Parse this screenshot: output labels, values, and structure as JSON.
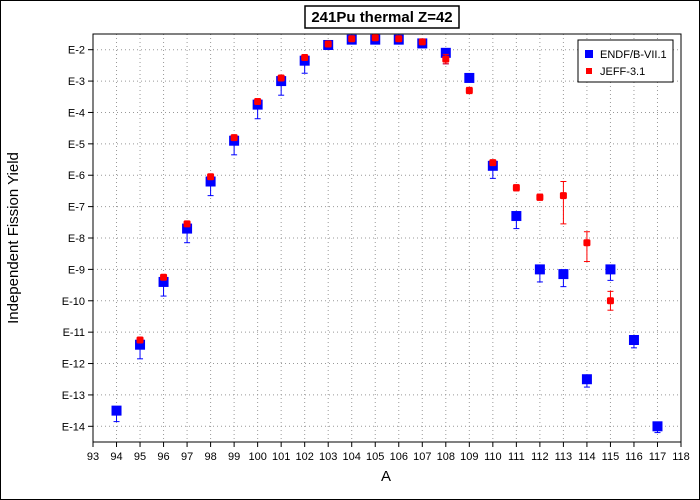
{
  "chart_data": {
    "type": "scatter",
    "title": "241Pu thermal Z=42",
    "xlabel": "A",
    "ylabel": "Independent Fission Yield",
    "xlim": [
      93,
      118
    ],
    "ylim": [
      -14.5,
      -1.5
    ],
    "x_ticks": [
      93,
      94,
      95,
      96,
      97,
      98,
      99,
      100,
      101,
      102,
      103,
      104,
      105,
      106,
      107,
      108,
      109,
      110,
      111,
      112,
      113,
      114,
      115,
      116,
      117,
      118
    ],
    "y_ticks": [
      -2,
      -3,
      -4,
      -5,
      -6,
      -7,
      -8,
      -9,
      -10,
      -11,
      -12,
      -13,
      -14
    ],
    "y_tick_labels": [
      "E-2",
      "E-3",
      "E-4",
      "E-5",
      "E-6",
      "E-7",
      "E-8",
      "E-9",
      "E-10",
      "E-11",
      "E-12",
      "E-13",
      "E-14"
    ],
    "y_scale": "log",
    "grid": true,
    "legend_position": "top-right",
    "series": [
      {
        "name": "ENDF/B-VII.1",
        "color": "#0000ff",
        "marker": "square",
        "points": [
          {
            "x": 94,
            "y": -13.5,
            "err_lo": 0.35,
            "err_hi": 0
          },
          {
            "x": 95,
            "y": -11.4,
            "err_lo": 0.45,
            "err_hi": 0
          },
          {
            "x": 96,
            "y": -9.4,
            "err_lo": 0.45,
            "err_hi": 0
          },
          {
            "x": 97,
            "y": -7.7,
            "err_lo": 0.45,
            "err_hi": 0
          },
          {
            "x": 98,
            "y": -6.2,
            "err_lo": 0.45,
            "err_hi": 0
          },
          {
            "x": 99,
            "y": -4.9,
            "err_lo": 0.45,
            "err_hi": 0
          },
          {
            "x": 100,
            "y": -3.75,
            "err_lo": 0.45,
            "err_hi": 0
          },
          {
            "x": 101,
            "y": -3.0,
            "err_lo": 0.45,
            "err_hi": 0
          },
          {
            "x": 102,
            "y": -2.35,
            "err_lo": 0.4,
            "err_hi": 0
          },
          {
            "x": 103,
            "y": -1.85,
            "err_lo": 0.1,
            "err_hi": 0
          },
          {
            "x": 104,
            "y": -1.68,
            "err_lo": 0.05,
            "err_hi": 0
          },
          {
            "x": 105,
            "y": -1.68,
            "err_lo": 0.05,
            "err_hi": 0
          },
          {
            "x": 106,
            "y": -1.68,
            "err_lo": 0.05,
            "err_hi": 0
          },
          {
            "x": 107,
            "y": -1.8,
            "err_lo": 0.1,
            "err_hi": 0
          },
          {
            "x": 108,
            "y": -2.1,
            "err_lo": 0.35,
            "err_hi": 0
          },
          {
            "x": 109,
            "y": -2.9,
            "err_lo": 0.05,
            "err_hi": 0.05
          },
          {
            "x": 110,
            "y": -5.7,
            "err_lo": 0.4,
            "err_hi": 0.1
          },
          {
            "x": 111,
            "y": -7.3,
            "err_lo": 0.4,
            "err_hi": 0
          },
          {
            "x": 112,
            "y": -9.0,
            "err_lo": 0.4,
            "err_hi": 0
          },
          {
            "x": 113,
            "y": -9.15,
            "err_lo": 0.4,
            "err_hi": 0
          },
          {
            "x": 114,
            "y": -12.5,
            "err_lo": 0.25,
            "err_hi": 0
          },
          {
            "x": 115,
            "y": -9.0,
            "err_lo": 0.35,
            "err_hi": 0.1
          },
          {
            "x": 116,
            "y": -11.25,
            "err_lo": 0.25,
            "err_hi": 0.1
          },
          {
            "x": 117,
            "y": -14.0,
            "err_lo": 0.2,
            "err_hi": 0
          }
        ]
      },
      {
        "name": "JEFF-3.1",
        "color": "#ff0000",
        "marker": "circle",
        "points": [
          {
            "x": 95,
            "y": -11.25,
            "err_lo": 0,
            "err_hi": 0
          },
          {
            "x": 96,
            "y": -9.25,
            "err_lo": 0,
            "err_hi": 0
          },
          {
            "x": 97,
            "y": -7.55,
            "err_lo": 0,
            "err_hi": 0
          },
          {
            "x": 98,
            "y": -6.05,
            "err_lo": 0,
            "err_hi": 0
          },
          {
            "x": 99,
            "y": -4.8,
            "err_lo": 0,
            "err_hi": 0
          },
          {
            "x": 100,
            "y": -3.65,
            "err_lo": 0,
            "err_hi": 0
          },
          {
            "x": 101,
            "y": -2.9,
            "err_lo": 0,
            "err_hi": 0
          },
          {
            "x": 102,
            "y": -2.25,
            "err_lo": 0,
            "err_hi": 0
          },
          {
            "x": 103,
            "y": -1.82,
            "err_lo": 0,
            "err_hi": 0
          },
          {
            "x": 104,
            "y": -1.65,
            "err_lo": 0,
            "err_hi": 0
          },
          {
            "x": 105,
            "y": -1.62,
            "err_lo": 0,
            "err_hi": 0
          },
          {
            "x": 106,
            "y": -1.65,
            "err_lo": 0,
            "err_hi": 0
          },
          {
            "x": 107,
            "y": -1.75,
            "err_lo": 0,
            "err_hi": 0
          },
          {
            "x": 108,
            "y": -2.3,
            "err_lo": 0.15,
            "err_hi": 0.15
          },
          {
            "x": 109,
            "y": -3.3,
            "err_lo": 0.1,
            "err_hi": 0.1
          },
          {
            "x": 110,
            "y": -5.6,
            "err_lo": 0,
            "err_hi": 0
          },
          {
            "x": 111,
            "y": -6.4,
            "err_lo": 0.1,
            "err_hi": 0.1
          },
          {
            "x": 112,
            "y": -6.7,
            "err_lo": 0.1,
            "err_hi": 0.1
          },
          {
            "x": 113,
            "y": -6.65,
            "err_lo": 0.9,
            "err_hi": 0.45
          },
          {
            "x": 114,
            "y": -8.15,
            "err_lo": 0.6,
            "err_hi": 0.35
          },
          {
            "x": 115,
            "y": -10.0,
            "err_lo": 0.3,
            "err_hi": 0.3
          }
        ]
      }
    ]
  }
}
